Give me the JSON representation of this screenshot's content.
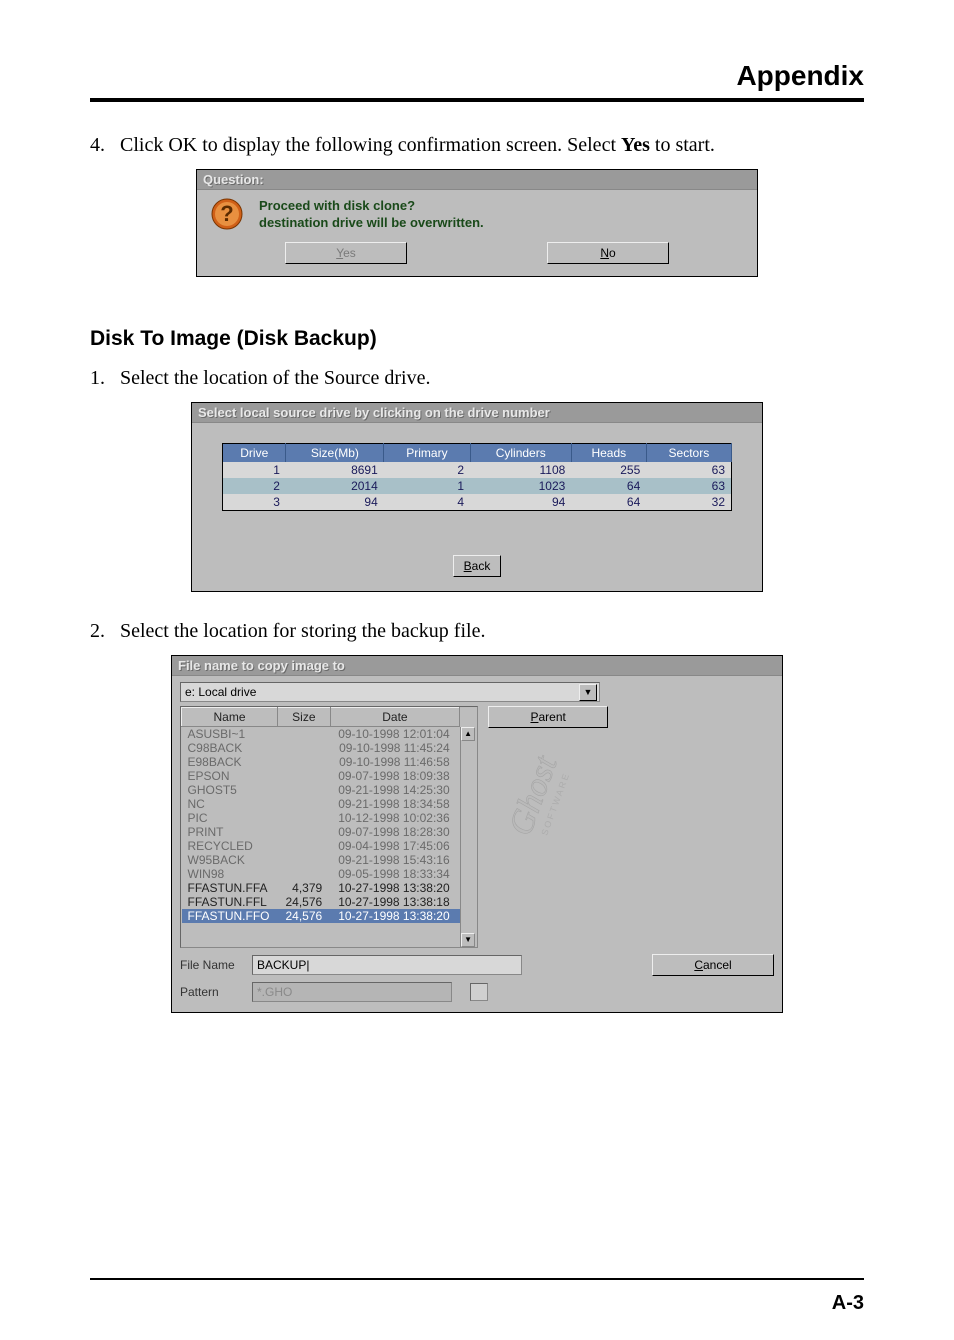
{
  "page": {
    "header_title": "Appendix",
    "page_number": "A-3"
  },
  "step4": {
    "number": "4.",
    "text_pre": "Click OK to display the following confirmation screen.  Select ",
    "text_bold": "Yes",
    "text_post": " to start."
  },
  "question_dialog": {
    "title": "Question:",
    "line1": "Proceed with disk clone?",
    "line2": "destination drive will be overwritten.",
    "yes_label": "Yes",
    "no_label": "No",
    "no_mnemonic": "N"
  },
  "section_title": "Disk To Image (Disk Backup)",
  "step1": {
    "number": "1.",
    "text": "Select the location of the Source drive."
  },
  "drive_dialog": {
    "title": "Select local source drive by clicking on the drive number",
    "columns": [
      "Drive",
      "Size(Mb)",
      "Primary",
      "Cylinders",
      "Heads",
      "Sectors"
    ],
    "rows": [
      {
        "drive": "1",
        "size": "8691",
        "primary": "2",
        "cylinders": "1108",
        "heads": "255",
        "sectors": "63",
        "selected": false
      },
      {
        "drive": "2",
        "size": "2014",
        "primary": "1",
        "cylinders": "1023",
        "heads": "64",
        "sectors": "63",
        "selected": true
      },
      {
        "drive": "3",
        "size": "94",
        "primary": "4",
        "cylinders": "94",
        "heads": "64",
        "sectors": "32",
        "selected": false
      }
    ],
    "back_label": "Back",
    "back_mnemonic": "B"
  },
  "step2": {
    "number": "2.",
    "text": "Select the location for storing the backup file."
  },
  "file_dialog": {
    "title": "File name to copy image to",
    "drive_selected": "e: Local drive",
    "columns": {
      "name": "Name",
      "size": "Size",
      "date": "Date"
    },
    "rows": [
      {
        "name": "ASUSBI~1",
        "size": "",
        "date": "09-10-1998 12:01:04",
        "dir": true
      },
      {
        "name": "C98BACK",
        "size": "",
        "date": "09-10-1998 11:45:24",
        "dir": true
      },
      {
        "name": "E98BACK",
        "size": "",
        "date": "09-10-1998 11:46:58",
        "dir": true
      },
      {
        "name": "EPSON",
        "size": "",
        "date": "09-07-1998 18:09:38",
        "dir": true
      },
      {
        "name": "GHOST5",
        "size": "",
        "date": "09-21-1998 14:25:30",
        "dir": true
      },
      {
        "name": "NC",
        "size": "",
        "date": "09-21-1998 18:34:58",
        "dir": true
      },
      {
        "name": "PIC",
        "size": "",
        "date": "10-12-1998 10:02:36",
        "dir": true
      },
      {
        "name": "PRINT",
        "size": "",
        "date": "09-07-1998 18:28:30",
        "dir": true
      },
      {
        "name": "RECYCLED",
        "size": "",
        "date": "09-04-1998 17:45:06",
        "dir": true
      },
      {
        "name": "W95BACK",
        "size": "",
        "date": "09-21-1998 15:43:16",
        "dir": true
      },
      {
        "name": "WIN98",
        "size": "",
        "date": "09-05-1998 18:33:34",
        "dir": true
      },
      {
        "name": "FFASTUN.FFA",
        "size": "4,379",
        "date": "10-27-1998 13:38:20",
        "dir": false
      },
      {
        "name": "FFASTUN.FFL",
        "size": "24,576",
        "date": "10-27-1998 13:38:18",
        "dir": false
      },
      {
        "name": "FFASTUN.FFO",
        "size": "24,576",
        "date": "10-27-1998 13:38:20",
        "dir": false,
        "selected": true
      }
    ],
    "parent_label": "Parent",
    "parent_mnemonic": "P",
    "cancel_label": "Cancel",
    "cancel_mnemonic": "C",
    "filename_label": "File Name",
    "filename_value": "BACKUP|",
    "pattern_label": "Pattern",
    "pattern_value": "*.GHO",
    "ghost_brand_top": "Ghost",
    "ghost_brand_bottom": "SOFTWARE"
  }
}
